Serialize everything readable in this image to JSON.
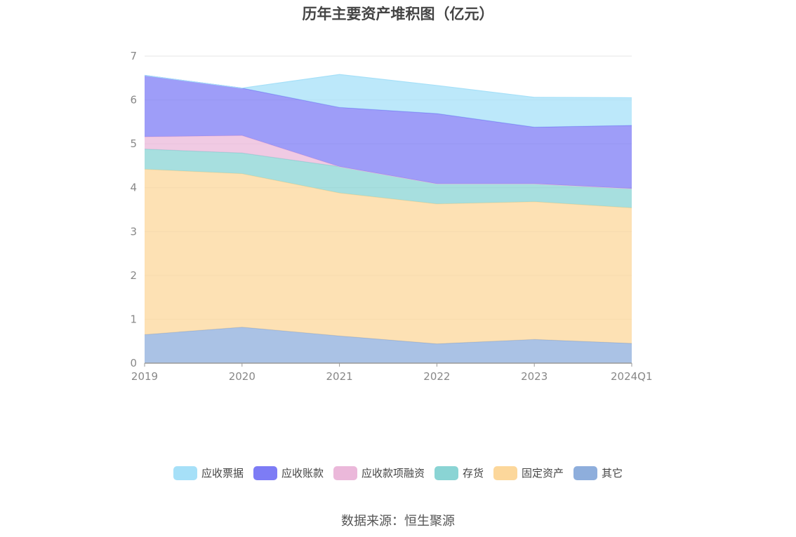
{
  "title": "历年主要资产堆积图（亿元）",
  "source": "数据来源：恒生聚源",
  "chart_data": {
    "type": "area",
    "stacked": true,
    "categories": [
      "2019",
      "2020",
      "2021",
      "2022",
      "2023",
      "2024Q1"
    ],
    "ylim": [
      0,
      7
    ],
    "yticks": [
      0,
      1,
      2,
      3,
      4,
      5,
      6,
      7
    ],
    "grid": true,
    "legend_position": "bottom",
    "series": [
      {
        "name": "其它",
        "color": "#8eaedc",
        "values": [
          0.65,
          0.82,
          0.62,
          0.44,
          0.54,
          0.45
        ]
      },
      {
        "name": "固定资产",
        "color": "#fcd79b",
        "values": [
          3.77,
          3.5,
          3.26,
          3.19,
          3.14,
          3.09
        ]
      },
      {
        "name": "存货",
        "color": "#8ad4d4",
        "values": [
          0.46,
          0.47,
          0.6,
          0.46,
          0.41,
          0.44
        ]
      },
      {
        "name": "应收款项融资",
        "color": "#ebb8da",
        "values": [
          0.28,
          0.4,
          0.0,
          0.0,
          0.0,
          0.0
        ]
      },
      {
        "name": "应收账款",
        "color": "#7d7cf5",
        "values": [
          1.4,
          1.08,
          1.35,
          1.6,
          1.29,
          1.44
        ]
      },
      {
        "name": "应收票据",
        "color": "#a6e0f8",
        "values": [
          0.0,
          0.0,
          0.75,
          0.64,
          0.68,
          0.63
        ]
      }
    ],
    "legend_order": [
      "应收票据",
      "应收账款",
      "应收款项融资",
      "存货",
      "固定资产",
      "其它"
    ]
  }
}
